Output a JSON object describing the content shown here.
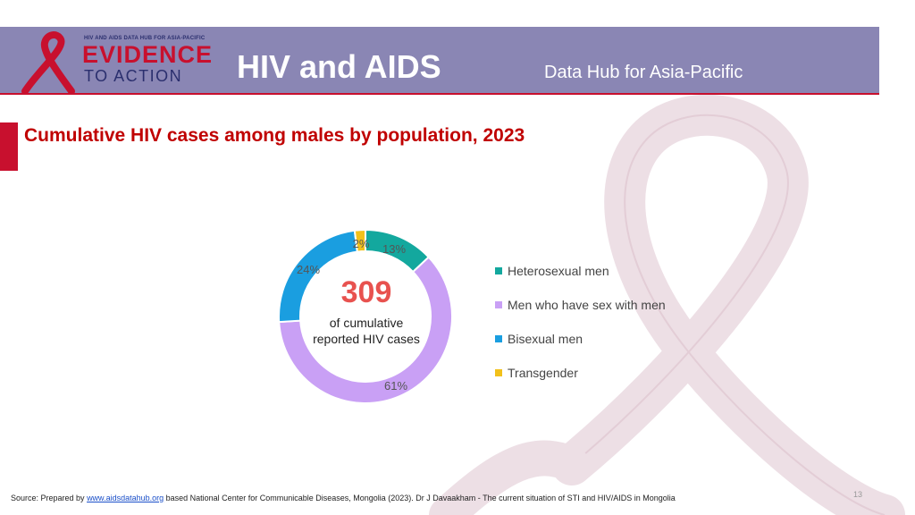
{
  "header": {
    "logo_top": "HIV AND AIDS DATA HUB FOR ASIA-PACIFIC",
    "logo_main": "EVIDENCE",
    "logo_sub": "TO ACTION",
    "title": "HIV and AIDS",
    "subtitle": "Data Hub for Asia-Pacific"
  },
  "slide": {
    "title": "Cumulative HIV cases among males by population, 2023",
    "page_number": "13"
  },
  "center": {
    "value": "309",
    "label_line1": "of cumulative",
    "label_line2": "reported HIV cases"
  },
  "chart_data": {
    "type": "pie",
    "title": "Cumulative HIV cases among males by population, 2023",
    "total": 309,
    "categories": [
      "Heterosexual men",
      "Men who have sex with men",
      "Bisexual men",
      "Transgender"
    ],
    "values": [
      13,
      61,
      24,
      2
    ],
    "labels": [
      "13%",
      "61%",
      "24%",
      "2%"
    ],
    "colors": [
      "#13a89e",
      "#c9a0f5",
      "#1a9ee0",
      "#f2c11b"
    ],
    "legend_position": "right"
  },
  "source": {
    "prefix": "Source: Prepared by",
    "link": "www.aidsdatahub.org",
    "suffix": "based National Center for Communicable Diseases, Mongolia (2023). Dr J Davaakham - The current situation of STI and HIV/AIDS in Mongolia"
  }
}
